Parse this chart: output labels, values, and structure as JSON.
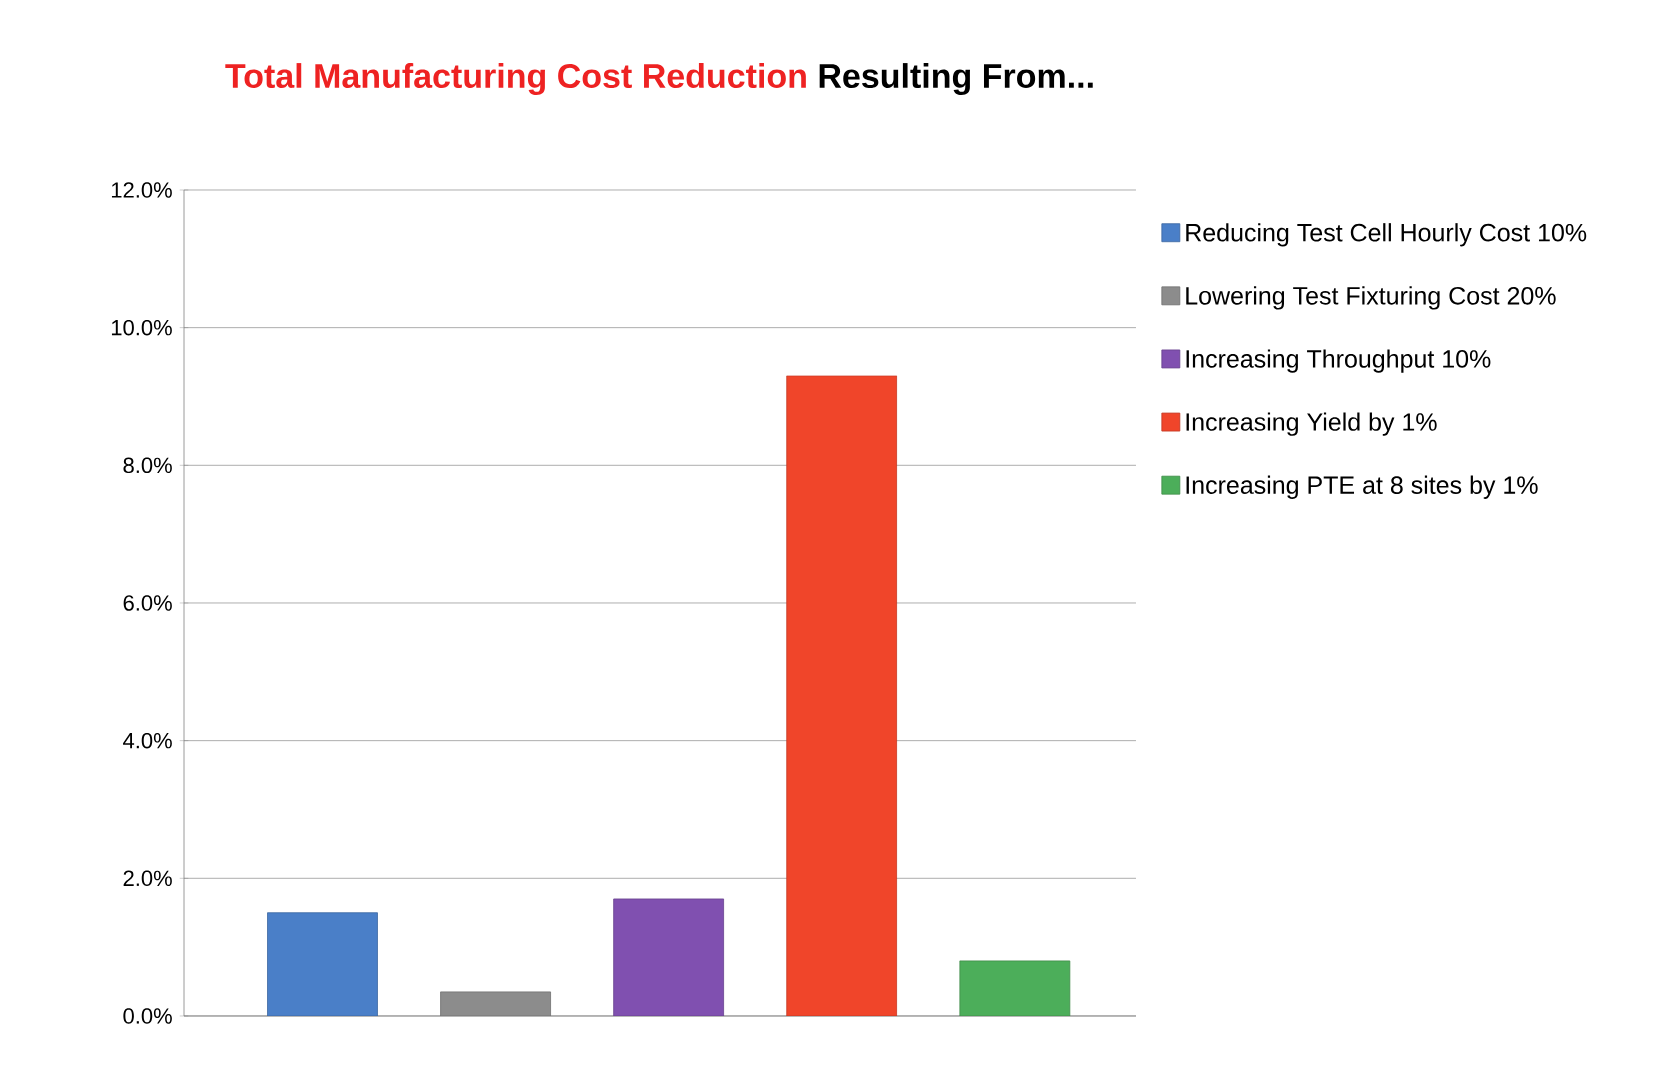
{
  "chart_data": {
    "type": "bar",
    "title": "Total Manufacturing Cost Reduction",
    "subtitle": "Resulting From...",
    "categories": [
      null,
      null,
      null,
      null,
      null
    ],
    "series": [
      {
        "name": "Reducing Test Cell Hourly Cost 10%",
        "color": "#4a7fc8",
        "values": [
          1.5,
          null,
          null,
          null,
          null
        ]
      },
      {
        "name": "Lowering Test Fixturing Cost 20%",
        "color": "#8c8c8c",
        "values": [
          null,
          0.35,
          null,
          null,
          null
        ]
      },
      {
        "name": "Increasing Throughput 10%",
        "color": "#8050b0",
        "values": [
          null,
          null,
          1.7,
          null,
          null
        ]
      },
      {
        "name": "Increasing Yield by 1%",
        "color": "#f0452a",
        "values": [
          null,
          null,
          null,
          9.3,
          null
        ]
      },
      {
        "name": "Increasing PTE at 8 sites by 1%",
        "color": "#4cae5a",
        "values": [
          null,
          null,
          null,
          null,
          0.8
        ]
      }
    ],
    "ylim": [
      0,
      12
    ],
    "yticks": [
      {
        "value": 0,
        "label": "0.0%"
      },
      {
        "value": 2,
        "label": "2.0%"
      },
      {
        "value": 4,
        "label": "4.0%"
      },
      {
        "value": 6,
        "label": "6.0%"
      },
      {
        "value": 8,
        "label": "8.0%"
      },
      {
        "value": 10,
        "label": "10.0%"
      },
      {
        "value": 12,
        "label": "12.0%"
      }
    ],
    "grid": "y",
    "legend": "right"
  }
}
